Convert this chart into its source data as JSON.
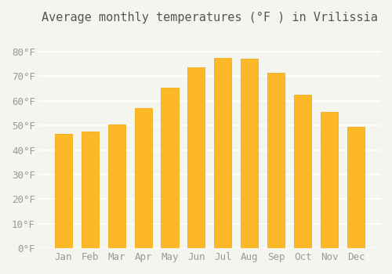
{
  "title": "Average monthly temperatures (°F ) in Vrilissia",
  "months": [
    "Jan",
    "Feb",
    "Mar",
    "Apr",
    "May",
    "Jun",
    "Jul",
    "Aug",
    "Sep",
    "Oct",
    "Nov",
    "Dec"
  ],
  "values": [
    46.5,
    47.5,
    50.5,
    57.0,
    65.5,
    73.5,
    77.5,
    77.0,
    71.5,
    62.5,
    55.5,
    49.5
  ],
  "bar_color_main": "#FDB827",
  "bar_color_edge": "#F0A500",
  "background_color": "#F5F5F0",
  "grid_color": "#FFFFFF",
  "ylim": [
    0,
    88
  ],
  "yticks": [
    0,
    10,
    20,
    30,
    40,
    50,
    60,
    70,
    80
  ],
  "title_fontsize": 11,
  "tick_fontsize": 9
}
